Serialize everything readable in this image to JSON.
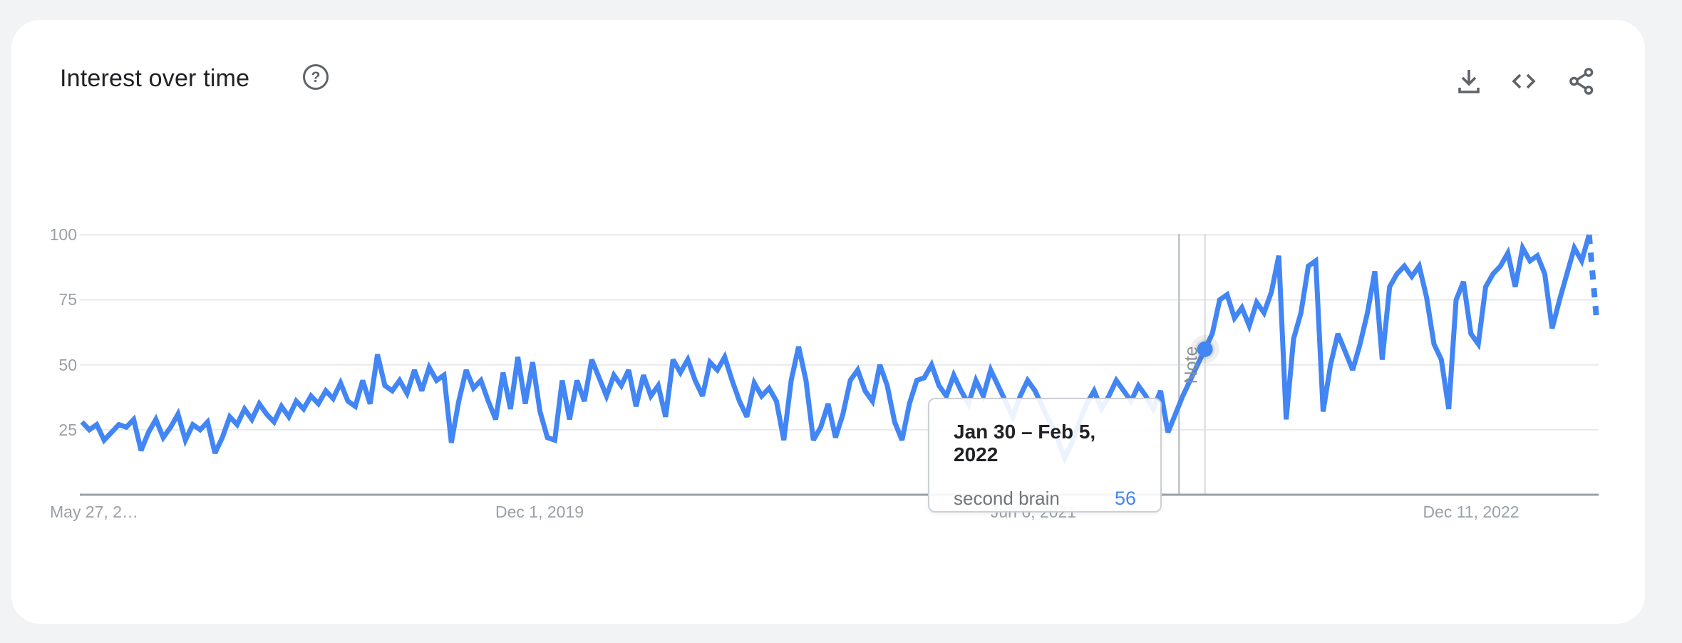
{
  "page": {
    "background": "#f1f3f4",
    "card_background": "#ffffff"
  },
  "header": {
    "title": "Interest over time",
    "help_glyph": "?",
    "help_icon": "circle-question-icon"
  },
  "toolbar": {
    "download_icon": "download-icon",
    "embed_icon": "embed-code-icon",
    "share_icon": "share-icon",
    "icon_color": "#5f6368"
  },
  "tooltip": {
    "date_range": "Jan 30 – Feb 5, 2022",
    "series_label": "second brain",
    "value": "56",
    "value_color": "#4285f4"
  },
  "chart_data": {
    "type": "line",
    "title": "Interest over time",
    "ylim": [
      0,
      100
    ],
    "grid": "horizontal-only",
    "y_ticks": [
      "100",
      "75",
      "50",
      "25"
    ],
    "x_ticks": [
      {
        "label": "May 27, 2…"
      },
      {
        "label": "Dec 1, 2019"
      },
      {
        "label": "Jun 6, 2021"
      },
      {
        "label": "Dec 11, 2022"
      }
    ],
    "series": [
      {
        "name": "second brain",
        "color": "#4285f4",
        "values": [
          28,
          25,
          27,
          21,
          24,
          27,
          26,
          29,
          17,
          24,
          29,
          22,
          26,
          31,
          21,
          27,
          25,
          28,
          16,
          22,
          30,
          27,
          33,
          29,
          35,
          31,
          28,
          34,
          30,
          36,
          33,
          38,
          35,
          40,
          37,
          43,
          36,
          34,
          44,
          35,
          54,
          42,
          40,
          44,
          39,
          48,
          40,
          49,
          44,
          46,
          20,
          36,
          48,
          41,
          44,
          36,
          29,
          47,
          33,
          53,
          35,
          51,
          32,
          22,
          21,
          44,
          29,
          44,
          36,
          52,
          45,
          38,
          46,
          42,
          48,
          34,
          46,
          38,
          42,
          30,
          52,
          47,
          52,
          44,
          38,
          51,
          48,
          53,
          44,
          36,
          30,
          43,
          38,
          41,
          36,
          21,
          44,
          57,
          44,
          21,
          26,
          35,
          22,
          31,
          44,
          48,
          40,
          36,
          50,
          42,
          28,
          21,
          35,
          44,
          45,
          50,
          42,
          38,
          46,
          40,
          35,
          44,
          38,
          48,
          42,
          36,
          30,
          38,
          44,
          40,
          34,
          28,
          22,
          14,
          20,
          28,
          35,
          40,
          33,
          38,
          44,
          40,
          36,
          42,
          38,
          33,
          40,
          24,
          31,
          38,
          44,
          50,
          56,
          62,
          75,
          77,
          68,
          72,
          65,
          74,
          70,
          78,
          92,
          29,
          60,
          70,
          88,
          90,
          32,
          50,
          62,
          55,
          48,
          58,
          70,
          86,
          52,
          80,
          85,
          88,
          84,
          88,
          76,
          58,
          52,
          33,
          75,
          82,
          62,
          58,
          80,
          85,
          88,
          93,
          80,
          95,
          90,
          92,
          85,
          64,
          75,
          85,
          95,
          90,
          100,
          68
        ]
      }
    ],
    "dashed_from_index": 204,
    "highlight": {
      "index": 152,
      "value": 56
    },
    "note_label": "Note",
    "note_index": 148.5,
    "colors": {
      "line": "#4285f4",
      "gridline": "#e7e9eb",
      "axis": "#9aa0a6",
      "note_line": "#bfc3c7",
      "hover_line": "#dde0e3",
      "tick_text": "#9aa0a6"
    }
  }
}
